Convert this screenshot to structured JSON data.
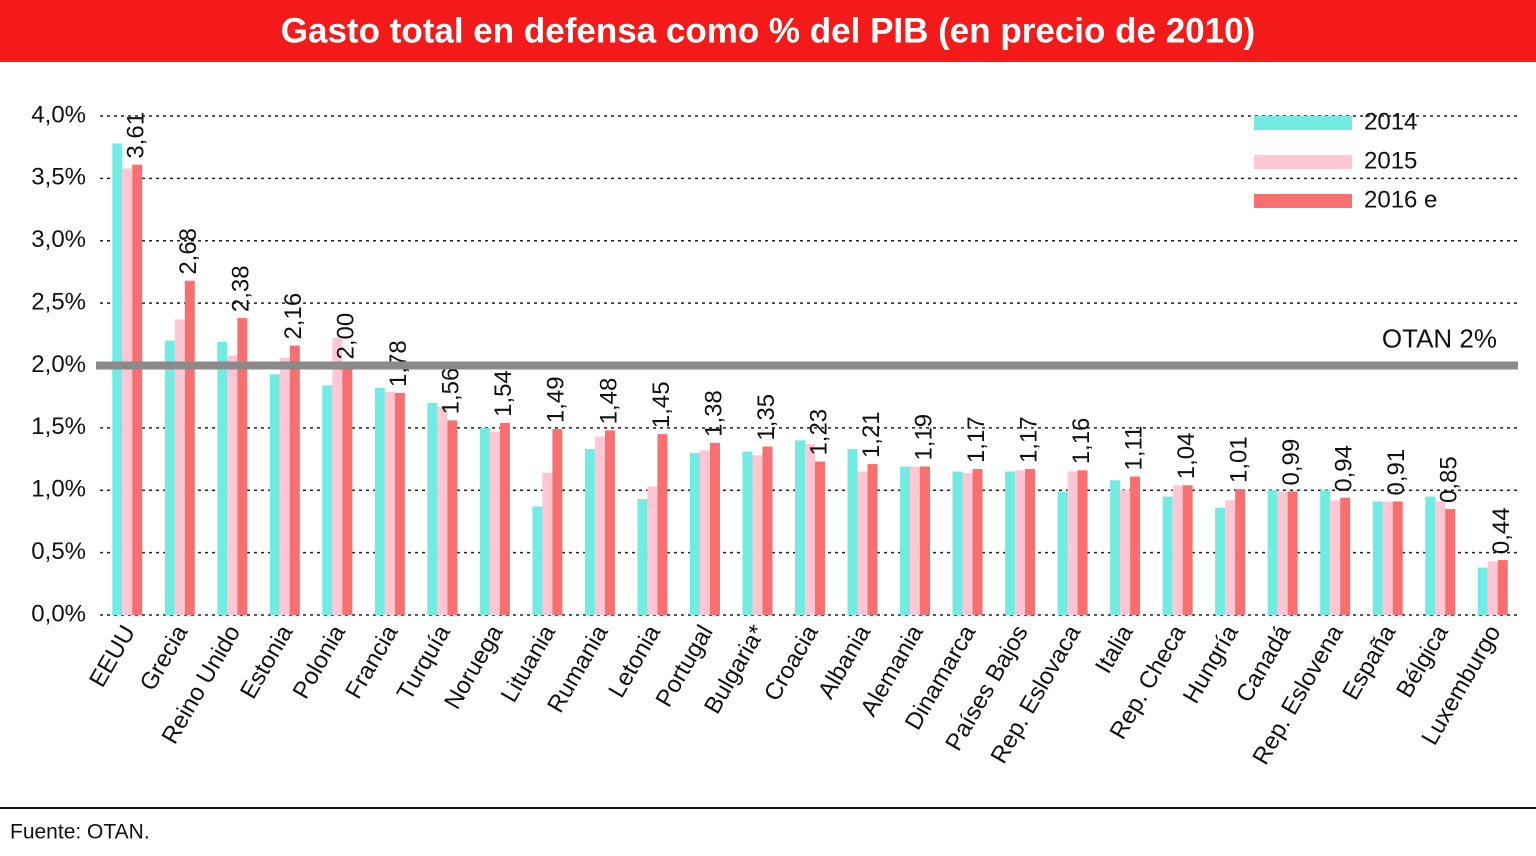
{
  "chart_data": {
    "type": "bar",
    "title": "Gasto total en defensa como % del PIB (en precio de 2010)",
    "categories": [
      "EEUU",
      "Grecia",
      "Reino Unido",
      "Estonia",
      "Polonia",
      "Francia",
      "Turquía",
      "Noruega",
      "Lituania",
      "Rumania",
      "Letonia",
      "Portugal",
      "Bulgaria*",
      "Croacia",
      "Albania",
      "Alemania",
      "Dinamarca",
      "Países Bajos",
      "Rep. Eslovaca",
      "Italia",
      "Rep. Checa",
      "Hungría",
      "Canadá",
      "Rep. Eslovena",
      "España",
      "Bélgica",
      "Luxemburgo"
    ],
    "series": [
      {
        "name": "2014",
        "color": "#72ebe2",
        "values": [
          3.78,
          2.2,
          2.19,
          1.93,
          1.84,
          1.82,
          1.7,
          1.5,
          0.87,
          1.33,
          0.93,
          1.3,
          1.31,
          1.4,
          1.33,
          1.19,
          1.15,
          1.15,
          0.99,
          1.08,
          0.95,
          0.86,
          1.0,
          1.0,
          0.91,
          0.95,
          0.38
        ]
      },
      {
        "name": "2015",
        "color": "#ffc7d3",
        "values": [
          3.58,
          2.37,
          2.08,
          2.06,
          2.22,
          1.79,
          1.67,
          1.47,
          1.14,
          1.43,
          1.03,
          1.32,
          1.28,
          1.37,
          1.15,
          1.19,
          1.14,
          1.16,
          1.15,
          1.0,
          1.04,
          0.92,
          0.99,
          0.92,
          0.91,
          0.91,
          0.43
        ]
      },
      {
        "name": "2016 e",
        "color": "#f76f6f",
        "values": [
          3.61,
          2.68,
          2.38,
          2.16,
          2.0,
          1.78,
          1.56,
          1.54,
          1.49,
          1.48,
          1.45,
          1.38,
          1.35,
          1.23,
          1.21,
          1.19,
          1.17,
          1.17,
          1.16,
          1.11,
          1.04,
          1.01,
          0.99,
          0.94,
          0.91,
          0.85,
          0.44
        ],
        "value_labels": [
          "3,61",
          "2,68",
          "2,38",
          "2,16",
          "2,00",
          "1,78",
          "1,56",
          "1,54",
          "1,49",
          "1,48",
          "1,45",
          "1,38",
          "1,35",
          "1,23",
          "1,21",
          "1,19",
          "1,17",
          "1,17",
          "1,16",
          "1,11",
          "1,04",
          "1,01",
          "0,99",
          "0,94",
          "0,91",
          "0,85",
          "0,44"
        ]
      }
    ],
    "ylim": [
      0,
      4
    ],
    "yticks": [
      {
        "value": 0,
        "label": "0,0%"
      },
      {
        "value": 0.5,
        "label": "0,5%"
      },
      {
        "value": 1,
        "label": "1,0%"
      },
      {
        "value": 1.5,
        "label": "1,5%"
      },
      {
        "value": 2,
        "label": "2,0%"
      },
      {
        "value": 2.5,
        "label": "2,5%"
      },
      {
        "value": 3,
        "label": "3,0%"
      },
      {
        "value": 3.5,
        "label": "3,5%"
      },
      {
        "value": 4,
        "label": "4,0%"
      }
    ],
    "grid": true,
    "legend": "top-right",
    "reference_line": {
      "value": 2,
      "label": "OTAN 2%",
      "color": "#8a8a8a"
    },
    "source": "Fuente: OTAN."
  }
}
